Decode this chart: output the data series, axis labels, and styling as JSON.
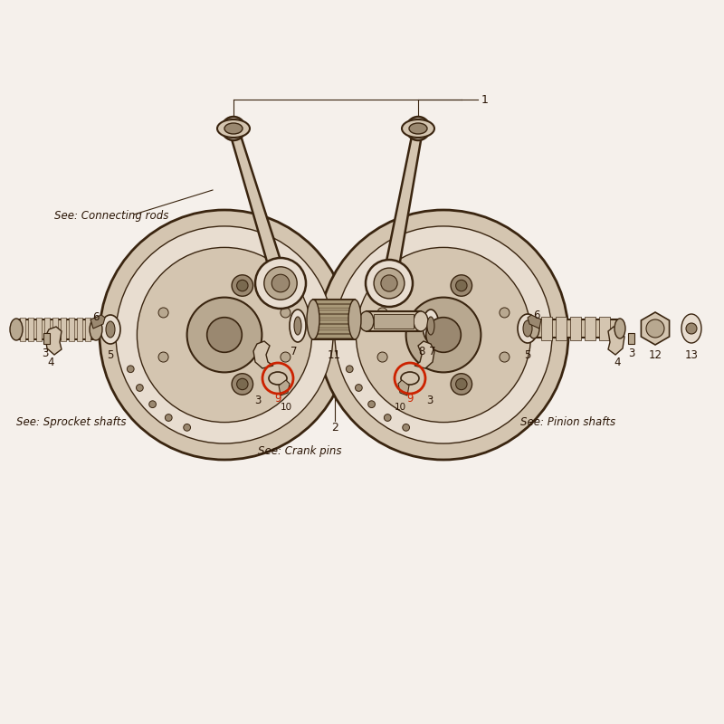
{
  "bg_color": "#f5f0eb",
  "line_color": "#3a2510",
  "fill_light": "#e8ddd0",
  "fill_mid": "#d4c5b0",
  "fill_dark": "#b8a890",
  "fill_darker": "#9a8870",
  "fill_hub": "#c0b09a",
  "fill_shaft": "#d0c0a8",
  "red_color": "#cc2200",
  "text_color": "#2a1505",
  "labels": {
    "connecting_rods": "See: Connecting rods",
    "sprocket_shafts": "See: Sprocket shafts",
    "crank_pins": "See: Crank pins",
    "pinion_shafts": "See: Pinion shafts"
  },
  "figsize": [
    8.0,
    8.0
  ],
  "dpi": 100
}
